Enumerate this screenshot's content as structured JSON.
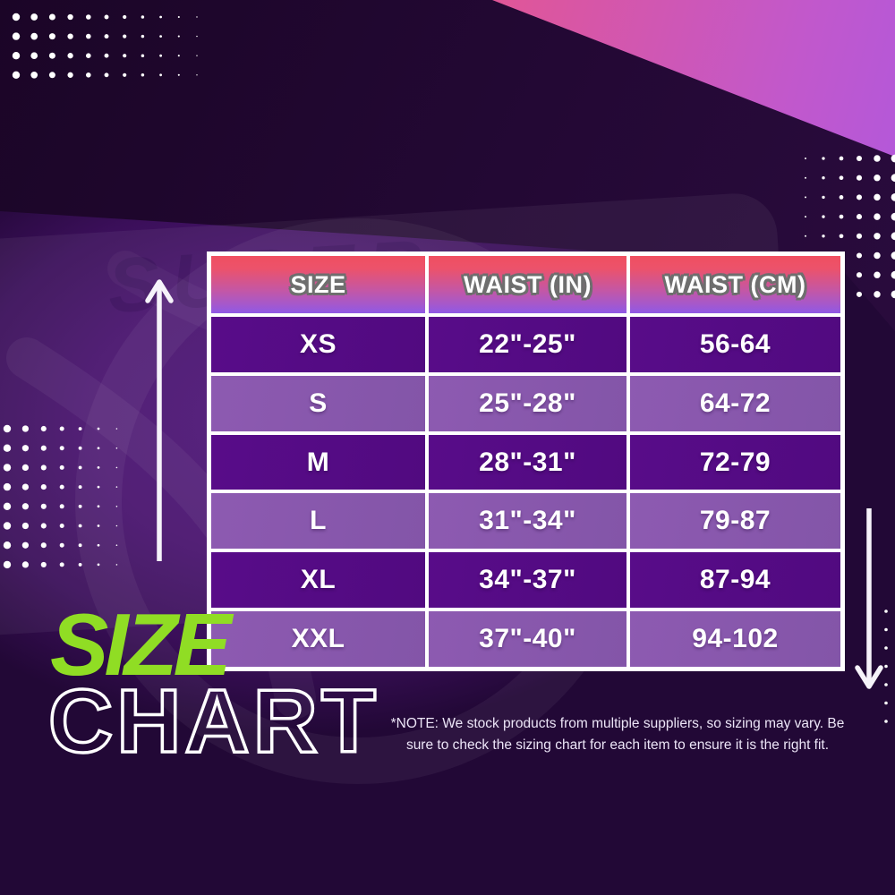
{
  "page": {
    "title_line1": "SIZE",
    "title_line2": "CHART",
    "watermark_text": "SUPER",
    "note": "*NOTE: We stock products from multiple suppliers, so sizing may vary. Be sure to check the sizing chart for  each item to ensure it is the right fit."
  },
  "colors": {
    "accent_green": "#90dd24",
    "header_gradient_top": "#f04f60",
    "header_gradient_bottom": "#9059e5",
    "row_dark_purple": "#560b87",
    "row_light_purple": "#8a57ad",
    "pink_corner_start": "#f2546e",
    "pink_corner_end": "#9f57ee",
    "background_bright_purple": "#4b1571",
    "background_dark_purple": "#250a38",
    "table_border_white": "#ffffff",
    "text_white": "#ffffff"
  },
  "icons": {
    "up_arrow": "up-arrow-icon",
    "down_arrow": "down-arrow-icon",
    "dot_pattern": "dot-grid-pattern"
  },
  "chart_data": {
    "type": "table",
    "title": "SIZE CHART",
    "columns": [
      "SIZE",
      "WAIST (IN)",
      "WAIST (CM)"
    ],
    "rows": [
      [
        "XS",
        "22\"-25\"",
        "56-64"
      ],
      [
        "S",
        "25\"-28\"",
        "64-72"
      ],
      [
        "M",
        "28\"-31\"",
        "72-79"
      ],
      [
        "L",
        "31\"-34\"",
        "79-87"
      ],
      [
        "XL",
        "34\"-37\"",
        "87-94"
      ],
      [
        "XXL",
        "37\"-40\"",
        "94-102"
      ]
    ]
  }
}
